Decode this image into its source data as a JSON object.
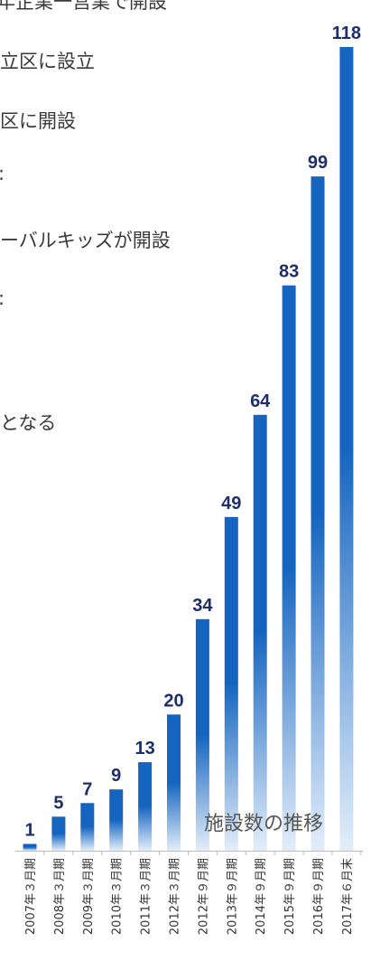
{
  "background_texts": [
    "年企業一営業で開設",
    "立区に設立",
    "区に開設",
    "ーバルキッズが開設",
    "となる"
  ],
  "background_texts_fragments": [
    ":",
    ":"
  ],
  "chart_data": {
    "type": "bar",
    "title": "施設数の推移",
    "categories": [
      "2007年３月期",
      "2008年３月期",
      "2009年３月期",
      "2010年３月期",
      "2011年３月期",
      "2012年３月期",
      "2012年９月期",
      "2013年９月期",
      "2014年９月期",
      "2015年９月期",
      "2016年９月期",
      "2017年６月末"
    ],
    "values": [
      1,
      5,
      7,
      9,
      13,
      20,
      34,
      49,
      64,
      83,
      99,
      118
    ],
    "ylim": [
      0,
      118
    ],
    "grid": false,
    "data_labels": true,
    "colors": {
      "bar_top": "#1565c0",
      "bar_bottom": "#e3eefa",
      "label": "#1d2e6b",
      "axis": "#bbbbbb"
    }
  }
}
